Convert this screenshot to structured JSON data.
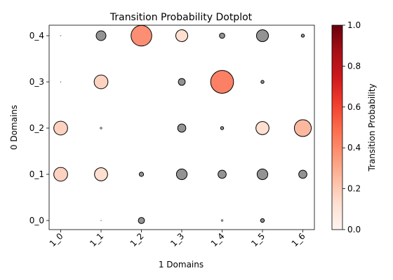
{
  "chart_data": {
    "type": "scatter",
    "title": "Transition Probability Dotplot",
    "xlabel": "1 Domains",
    "ylabel": "0 Domains",
    "x_categories": [
      "1_0",
      "1_1",
      "1_2",
      "1_3",
      "1_4",
      "1_5",
      "1_6"
    ],
    "y_categories": [
      "0_0",
      "0_1",
      "0_2",
      "0_3",
      "0_4"
    ],
    "colorbar": {
      "label": "Transition Probability",
      "range": [
        0,
        1
      ],
      "ticks": [
        "0.0",
        "0.2",
        "0.4",
        "0.6",
        "0.8",
        "1.0"
      ],
      "colormap": "Reds"
    },
    "note_gray_points": "gray points carry no color value",
    "points": [
      {
        "x": "1_0",
        "y": "0_4",
        "value": 0.0,
        "color": "red",
        "size": 0.0
      },
      {
        "x": "1_1",
        "y": "0_4",
        "value": null,
        "color": "gray",
        "size": 0.1
      },
      {
        "x": "1_2",
        "y": "0_4",
        "value": 0.45,
        "color": "red",
        "size": 0.45
      },
      {
        "x": "1_3",
        "y": "0_4",
        "value": 0.15,
        "color": "red",
        "size": 0.15
      },
      {
        "x": "1_4",
        "y": "0_4",
        "value": null,
        "color": "gray",
        "size": 0.03
      },
      {
        "x": "1_5",
        "y": "0_4",
        "value": null,
        "color": "gray",
        "size": 0.15
      },
      {
        "x": "1_6",
        "y": "0_4",
        "value": null,
        "color": "gray",
        "size": 0.01
      },
      {
        "x": "1_0",
        "y": "0_3",
        "value": 0.0,
        "color": "red",
        "size": 0.0
      },
      {
        "x": "1_1",
        "y": "0_3",
        "value": 0.2,
        "color": "red",
        "size": 0.2
      },
      {
        "x": "1_3",
        "y": "0_3",
        "value": null,
        "color": "gray",
        "size": 0.05
      },
      {
        "x": "1_4",
        "y": "0_3",
        "value": 0.5,
        "color": "red",
        "size": 0.55
      },
      {
        "x": "1_5",
        "y": "0_3",
        "value": null,
        "color": "gray",
        "size": 0.01
      },
      {
        "x": "1_0",
        "y": "0_2",
        "value": 0.2,
        "color": "red",
        "size": 0.2
      },
      {
        "x": "1_1",
        "y": "0_2",
        "value": null,
        "color": "gray",
        "size": 0.005
      },
      {
        "x": "1_3",
        "y": "0_2",
        "value": null,
        "color": "gray",
        "size": 0.07
      },
      {
        "x": "1_4",
        "y": "0_2",
        "value": null,
        "color": "gray",
        "size": 0.01
      },
      {
        "x": "1_5",
        "y": "0_2",
        "value": 0.15,
        "color": "red",
        "size": 0.18
      },
      {
        "x": "1_6",
        "y": "0_2",
        "value": 0.3,
        "color": "red",
        "size": 0.3
      },
      {
        "x": "1_0",
        "y": "0_1",
        "value": 0.2,
        "color": "red",
        "size": 0.2
      },
      {
        "x": "1_1",
        "y": "0_1",
        "value": 0.15,
        "color": "red",
        "size": 0.18
      },
      {
        "x": "1_2",
        "y": "0_1",
        "value": null,
        "color": "gray",
        "size": 0.02
      },
      {
        "x": "1_3",
        "y": "0_1",
        "value": null,
        "color": "gray",
        "size": 0.12
      },
      {
        "x": "1_4",
        "y": "0_1",
        "value": null,
        "color": "gray",
        "size": 0.07
      },
      {
        "x": "1_5",
        "y": "0_1",
        "value": null,
        "color": "gray",
        "size": 0.12
      },
      {
        "x": "1_6",
        "y": "0_1",
        "value": null,
        "color": "gray",
        "size": 0.07
      },
      {
        "x": "1_1",
        "y": "0_0",
        "value": 0.0,
        "color": "red",
        "size": 0.0
      },
      {
        "x": "1_2",
        "y": "0_0",
        "value": null,
        "color": "gray",
        "size": 0.04
      },
      {
        "x": "1_4",
        "y": "0_0",
        "value": null,
        "color": "gray",
        "size": 0.005
      },
      {
        "x": "1_5",
        "y": "0_0",
        "value": null,
        "color": "gray",
        "size": 0.015
      }
    ]
  }
}
